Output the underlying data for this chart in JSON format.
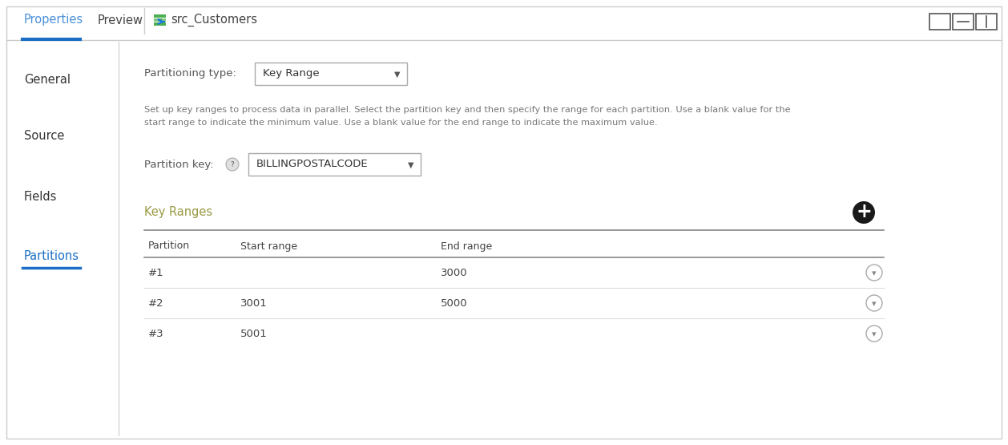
{
  "bg_color": "#ffffff",
  "outer_border_color": "#cccccc",
  "header": {
    "tabs": [
      "Properties",
      "Preview"
    ],
    "active_tab": "Properties",
    "active_tab_color": "#4a90d9",
    "inactive_tab_color": "#444444",
    "title": "src_Customers",
    "title_color": "#444444",
    "active_underline_color": "#1a6fc4",
    "separator_color": "#cccccc"
  },
  "sidebar": {
    "items": [
      "General",
      "Source",
      "Fields",
      "Partitions"
    ],
    "active_item": "Partitions",
    "active_color": "#1a6fc4",
    "inactive_color": "#333333",
    "active_underline_color": "#1a6fc4",
    "separator_color": "#cccccc"
  },
  "content": {
    "partitioning_type_label": "Partitioning type:",
    "partitioning_type_value": "Key Range",
    "description_line1": "Set up key ranges to process data in parallel. Select the partition key and then specify the range for each partition. Use a blank value for the",
    "description_line2": "start range to indicate the minimum value. Use a blank value for the end range to indicate the maximum value.",
    "partition_key_label": "Partition key:",
    "partition_key_value": "BILLINGPOSTALCODE",
    "key_ranges_label": "Key Ranges",
    "table_headers": [
      "Partition",
      "Start range",
      "End range"
    ],
    "table_rows": [
      {
        "partition": "#1",
        "start": "",
        "end": "3000"
      },
      {
        "partition": "#2",
        "start": "3001",
        "end": "5000"
      },
      {
        "partition": "#3",
        "start": "5001",
        "end": ""
      }
    ],
    "label_color": "#555555",
    "desc_color": "#777777",
    "text_color": "#333333",
    "key_ranges_color": "#999944",
    "dropdown_border": "#aaaaaa",
    "table_header_color": "#444444",
    "table_data_color": "#444444",
    "row_divider_color": "#dddddd",
    "table_divider_color": "#888888"
  }
}
